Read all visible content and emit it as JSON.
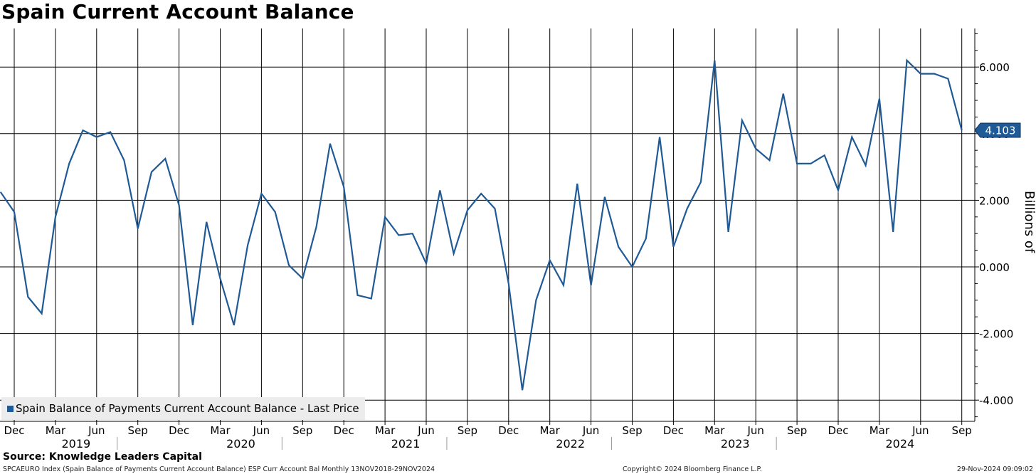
{
  "chart_data": {
    "type": "line",
    "title": "Spain Current Account Balance",
    "ylabel": "Billions of",
    "ylim": [
      -4.6,
      7.2
    ],
    "yticks": [
      6,
      4,
      2,
      0,
      -2,
      -4
    ],
    "ytick_labels": [
      "6.000",
      "4.000",
      "2.000",
      "0.000",
      "-2.000",
      "-4.000"
    ],
    "grid": true,
    "legend_position": "bottom-left",
    "last_value_label": "4.103",
    "x_month_labels": [
      "Dec",
      "Mar",
      "Jun",
      "Sep",
      "Dec",
      "Mar",
      "Jun",
      "Sep",
      "Dec",
      "Mar",
      "Jun",
      "Sep",
      "Dec",
      "Mar",
      "Jun",
      "Sep",
      "Dec",
      "Mar",
      "Jun",
      "Sep",
      "Dec",
      "Mar",
      "Jun",
      "Sep"
    ],
    "x_year_labels": [
      "2019",
      "2020",
      "2021",
      "2022",
      "2023",
      "2024"
    ],
    "series": [
      {
        "name": "Spain Balance of Payments Current Account Balance - Last Price",
        "color": "#1f5a96",
        "start": "2018-11",
        "values": [
          2.25,
          1.65,
          -0.9,
          -1.4,
          1.5,
          3.1,
          4.1,
          3.9,
          4.05,
          3.2,
          1.15,
          2.85,
          3.25,
          1.85,
          -1.75,
          1.35,
          -0.35,
          -1.75,
          0.65,
          2.2,
          1.65,
          0.05,
          -0.35,
          1.2,
          3.7,
          2.4,
          -0.85,
          -0.95,
          1.5,
          0.95,
          1.0,
          0.1,
          2.3,
          0.4,
          1.7,
          2.2,
          1.75,
          -0.5,
          -3.7,
          -1.0,
          0.2,
          -0.55,
          2.5,
          -0.55,
          2.1,
          0.6,
          0.0,
          0.85,
          3.9,
          0.6,
          1.75,
          2.55,
          6.2,
          1.05,
          4.4,
          3.55,
          3.2,
          5.2,
          3.1,
          3.1,
          3.35,
          2.3,
          3.9,
          3.05,
          5.05,
          1.05,
          6.2,
          5.8,
          5.8,
          5.65,
          4.103
        ]
      }
    ]
  },
  "legend": {
    "label": "Spain Balance of Payments Current Account Balance - Last Price"
  },
  "source": "Source: Knowledge Leaders Capital",
  "footer": {
    "index": "SPCAEURO Index (Spain Balance of Payments Current Account Balance) ESP Curr Account Bal  Monthly 13NOV2018-29NOV2024",
    "copyright": "Copyright© 2024 Bloomberg Finance L.P.",
    "timestamp": "29-Nov-2024 09:09:02"
  }
}
